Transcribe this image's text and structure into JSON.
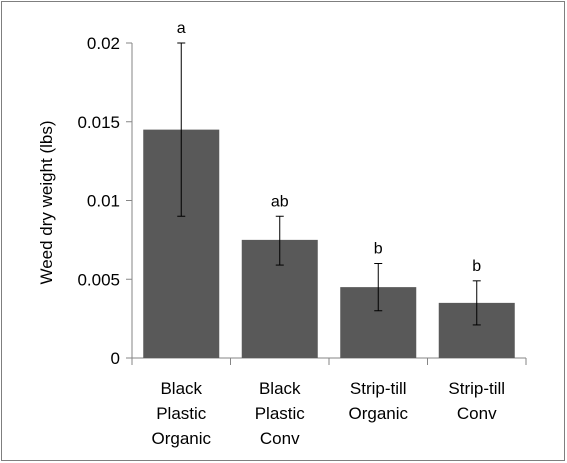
{
  "chart_data": {
    "type": "bar",
    "title": "",
    "xlabel": "",
    "ylabel": "Weed dry weight (lbs)",
    "ylim": [
      0,
      0.02
    ],
    "yticks": [
      "0",
      "0.005",
      "0.01",
      "0.015",
      "0.02"
    ],
    "ytick_values": [
      0,
      0.005,
      0.01,
      0.015,
      0.02
    ],
    "grid": false,
    "legend": "none",
    "bar_color": "#595959",
    "categories": [
      [
        "Black",
        "Plastic",
        "Organic"
      ],
      [
        "Black",
        "Plastic",
        "Conv"
      ],
      [
        "Strip-till",
        "Organic"
      ],
      [
        "Strip-till",
        "Conv"
      ]
    ],
    "values": [
      0.0145,
      0.0075,
      0.0045,
      0.0035
    ],
    "error_bars": [
      [
        0.009,
        0.02
      ],
      [
        0.0059,
        0.009
      ],
      [
        0.003,
        0.006
      ],
      [
        0.0021,
        0.0049
      ]
    ],
    "annotations": [
      "a",
      "ab",
      "b",
      "b"
    ]
  }
}
